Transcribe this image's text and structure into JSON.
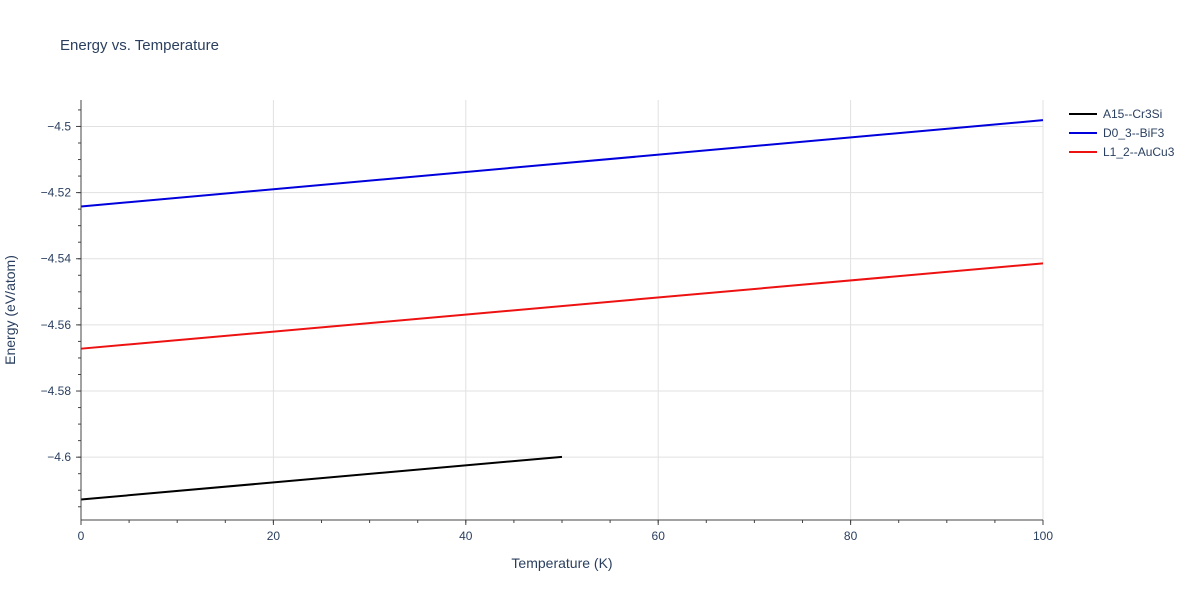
{
  "chart_data": {
    "type": "line",
    "title": "Energy vs. Temperature",
    "xlabel": "Temperature (K)",
    "ylabel": "Energy (eV/atom)",
    "xlim": [
      0,
      100
    ],
    "ylim": [
      -4.619,
      -4.492
    ],
    "x_ticks": [
      0,
      20,
      40,
      60,
      80,
      100
    ],
    "x_tick_labels": [
      "0",
      "20",
      "40",
      "60",
      "80",
      "100"
    ],
    "x_minor_step": 5,
    "y_ticks": [
      -4.6,
      -4.58,
      -4.56,
      -4.54,
      -4.52,
      -4.5
    ],
    "y_tick_labels": [
      "−4.6",
      "−4.58",
      "−4.56",
      "−4.54",
      "−4.52",
      "−4.5"
    ],
    "y_minor_step": 0.005,
    "grid": true,
    "legend_position": "top-right",
    "series": [
      {
        "name": "A15--Cr3Si",
        "color": "#000000",
        "x": [
          0,
          50
        ],
        "y": [
          -4.6128,
          -4.5999
        ]
      },
      {
        "name": "D0_3--BiF3",
        "color": "#0000dd",
        "x": [
          0,
          100
        ],
        "y": [
          -4.5242,
          -4.4981
        ]
      },
      {
        "name": "L1_2--AuCu3",
        "color": "#ee1111",
        "x": [
          0,
          100
        ],
        "y": [
          -4.5672,
          -4.5414
        ]
      }
    ]
  }
}
